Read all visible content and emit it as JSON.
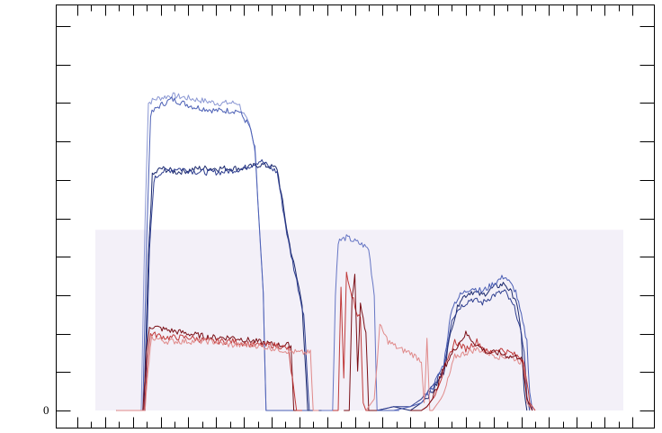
{
  "chart_data": {
    "type": "line",
    "title": "",
    "xlabel": "",
    "ylabel": "",
    "xlim": [
      0,
      100
    ],
    "ylim": [
      0,
      105
    ],
    "yticks": [
      0,
      10,
      20,
      30,
      40,
      50,
      60,
      70,
      80,
      90,
      100
    ],
    "ytick_labels": [
      "0",
      "",
      "",
      "",
      "",
      "",
      "",
      "",
      "",
      "",
      ""
    ],
    "xticks": [
      0,
      2.5,
      5,
      7.5,
      10,
      12.5,
      15,
      17.5,
      20,
      22.5,
      25,
      27.5,
      30,
      32.5,
      35,
      37.5,
      40,
      42.5,
      45,
      47.5,
      50,
      52.5,
      55,
      57.5,
      60,
      62.5,
      65,
      67.5,
      70,
      72.5,
      75,
      77.5,
      80,
      82.5,
      85,
      87.5,
      90,
      92.5,
      95,
      97.5,
      100
    ],
    "grid": false,
    "background_band": [
      0,
      47
    ],
    "colors": {
      "dark_blue": "#1c2a6e",
      "mid_blue": "#4b5fb5",
      "light_blue": "#8a97d3",
      "dark_red": "#7a0f16",
      "mid_red": "#c03a3a",
      "light_red": "#e08a8a"
    },
    "series": [
      {
        "color": "#8a97d3",
        "x": [
          7,
          11.5,
          12.2,
          12.8,
          14,
          17,
          21,
          25,
          29,
          31,
          32,
          33.5,
          34,
          35,
          45
        ],
        "y": [
          0,
          0,
          50,
          80,
          81,
          82,
          81,
          80,
          80,
          74,
          68,
          30,
          0,
          0,
          0
        ]
      },
      {
        "color": "#4b5fb5",
        "x": [
          7,
          11.8,
          12.5,
          13.2,
          14.5,
          17,
          21,
          25,
          29,
          31,
          32,
          33.5,
          34,
          35,
          45
        ],
        "y": [
          0,
          0,
          45,
          77,
          79,
          81,
          79,
          78,
          78,
          74,
          68,
          30,
          0,
          0,
          0
        ]
      },
      {
        "color": "#1c2a6e",
        "x": [
          7,
          12,
          12.8,
          13.5,
          15,
          18,
          22,
          26,
          30,
          33,
          36,
          38,
          40.5,
          41.5,
          45
        ],
        "y": [
          0,
          0,
          40,
          61,
          63,
          62,
          63,
          63,
          63,
          64,
          63,
          45,
          28,
          0,
          0
        ]
      },
      {
        "color": "#2d3d8f",
        "x": [
          7,
          12.2,
          13,
          13.8,
          15,
          18,
          22,
          26,
          30,
          33,
          36,
          38,
          40.8,
          41.8,
          45
        ],
        "y": [
          0,
          0,
          42,
          60,
          62,
          63,
          62,
          62,
          63,
          65,
          62,
          44,
          25,
          0,
          0
        ]
      },
      {
        "color": "#6676c4",
        "x": [
          44,
          46,
          46.5,
          47,
          48.5,
          50,
          51.5,
          52.5,
          53.5,
          54,
          58
        ],
        "y": [
          0,
          0,
          30,
          44,
          45,
          44,
          43,
          42,
          30,
          0,
          0
        ]
      },
      {
        "color": "#1c2a6e",
        "x": [
          54,
          57,
          60,
          62,
          64,
          66,
          67.5,
          69,
          71,
          73,
          75,
          77,
          79,
          80,
          80.5,
          81
        ],
        "y": [
          0,
          1,
          0,
          2,
          5,
          10,
          22,
          29,
          31,
          30,
          32,
          33,
          29,
          20,
          5,
          0
        ]
      },
      {
        "color": "#2d3d8f",
        "x": [
          54,
          57,
          60,
          62,
          64,
          66,
          67.5,
          69,
          71,
          73,
          75,
          77,
          79,
          80.5,
          81,
          81.5
        ],
        "y": [
          0,
          1,
          1,
          3,
          6,
          11,
          24,
          27,
          29,
          28,
          30,
          31,
          26,
          16,
          4,
          0
        ]
      },
      {
        "color": "#4b5fb5",
        "x": [
          54,
          57,
          60,
          62,
          64,
          66,
          67.5,
          69,
          71,
          73,
          75,
          77,
          79,
          81,
          81.5,
          82
        ],
        "y": [
          0,
          0,
          1,
          2,
          6,
          12,
          27,
          30,
          32,
          31,
          33,
          35,
          31,
          18,
          5,
          0
        ]
      },
      {
        "color": "#7a0f16",
        "x": [
          7,
          11.8,
          12.5,
          13,
          16,
          20,
          24,
          28,
          32,
          36,
          38.5,
          39,
          40
        ],
        "y": [
          0,
          0,
          15,
          22,
          21,
          20,
          19,
          19,
          18,
          17,
          17,
          0,
          0
        ]
      },
      {
        "color": "#c03a3a",
        "x": [
          7,
          12,
          12.7,
          13.2,
          16,
          20,
          24,
          28,
          32,
          36,
          38,
          39.5,
          40.5
        ],
        "y": [
          0,
          0,
          14,
          20,
          19,
          19,
          18,
          18,
          17,
          17,
          16,
          0,
          0
        ]
      },
      {
        "color": "#e08a8a",
        "x": [
          7,
          12.2,
          12.9,
          13.4,
          16,
          20,
          24,
          28,
          32,
          36,
          40,
          42,
          42.5,
          43.5
        ],
        "y": [
          0,
          0,
          13,
          19,
          18,
          18,
          18,
          17,
          17,
          16,
          15,
          15,
          0,
          0
        ]
      },
      {
        "color": "#c03a3a",
        "x": [
          46,
          47,
          47.5,
          48,
          48.5,
          49.5,
          50.5,
          51,
          51.5,
          52,
          53
        ],
        "y": [
          0,
          0,
          32,
          8,
          36,
          30,
          25,
          24,
          2,
          0,
          0
        ]
      },
      {
        "color": "#7a0f16",
        "x": [
          48,
          49,
          49.5,
          50,
          50.5,
          51,
          52,
          52.5,
          53,
          54
        ],
        "y": [
          0,
          0,
          30,
          35,
          10,
          28,
          20,
          0,
          0,
          0
        ]
      },
      {
        "color": "#e08a8a",
        "x": [
          52,
          53.5,
          54.5,
          56,
          58,
          60,
          62,
          62.5,
          63,
          63.5,
          64,
          66,
          68,
          70,
          72,
          74,
          76,
          78,
          79.5,
          80.5,
          81,
          82
        ],
        "y": [
          0,
          3,
          22,
          18,
          16,
          15,
          13,
          2,
          18,
          0,
          0,
          4,
          14,
          15,
          16,
          15,
          14,
          14,
          13,
          12,
          2,
          0
        ]
      },
      {
        "color": "#c03a3a",
        "x": [
          60,
          62,
          63,
          64,
          66,
          68,
          70,
          72,
          74,
          76,
          78,
          79.5,
          80.5,
          81.5,
          82.5
        ],
        "y": [
          0,
          0,
          1,
          3,
          10,
          18,
          16,
          18,
          15,
          16,
          15,
          14,
          13,
          2,
          0
        ]
      },
      {
        "color": "#7a0f16",
        "x": [
          60,
          62,
          63,
          64,
          66,
          68,
          70,
          72,
          74,
          76,
          78,
          80,
          81,
          82
        ],
        "y": [
          0,
          0,
          1,
          3,
          11,
          16,
          20,
          17,
          15,
          15,
          14,
          14,
          3,
          0
        ]
      }
    ]
  }
}
